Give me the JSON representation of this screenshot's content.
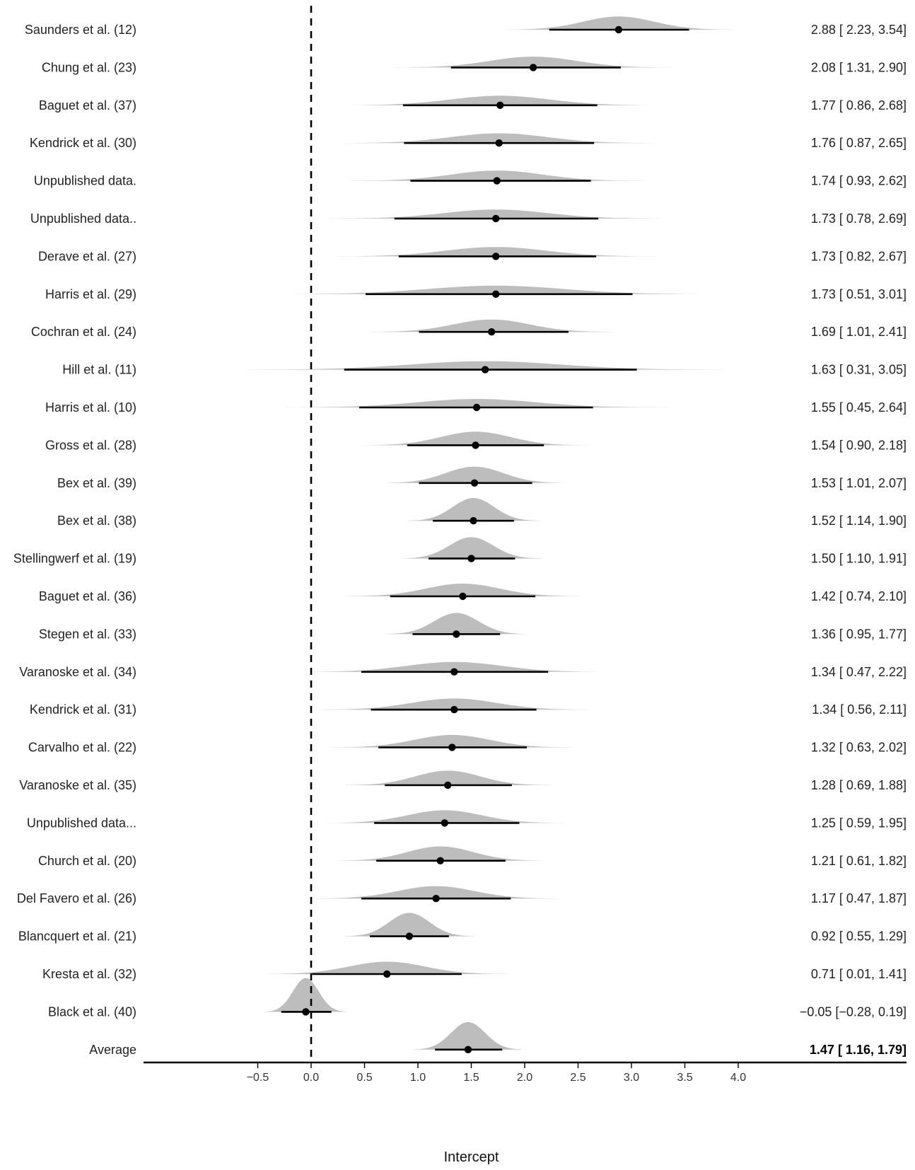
{
  "chart_data": {
    "type": "forest",
    "xlabel": "Intercept",
    "xlim": [
      -0.5,
      4.0
    ],
    "xticks": [
      -0.5,
      0.0,
      0.5,
      1.0,
      1.5,
      2.0,
      2.5,
      3.0,
      3.5,
      4.0
    ],
    "xtick_labels": [
      "−0.5",
      "0.0",
      "0.5",
      "1.0",
      "1.5",
      "2.0",
      "2.5",
      "3.0",
      "3.5",
      "4.0"
    ],
    "reference_line": 0.0,
    "grid": false,
    "density_color": "#bdbdbd",
    "point_color": "#000000",
    "studies": [
      {
        "name": "Saunders et al. (12)",
        "estimate": 2.88,
        "lower": 2.23,
        "upper": 3.54,
        "label": "2.88 [ 2.23, 3.54]"
      },
      {
        "name": "Chung et al. (23)",
        "estimate": 2.08,
        "lower": 1.31,
        "upper": 2.9,
        "label": "2.08 [ 1.31, 2.90]"
      },
      {
        "name": "Baguet et al. (37)",
        "estimate": 1.77,
        "lower": 0.86,
        "upper": 2.68,
        "label": "1.77 [ 0.86, 2.68]"
      },
      {
        "name": "Kendrick et al. (30)",
        "estimate": 1.76,
        "lower": 0.87,
        "upper": 2.65,
        "label": "1.76 [ 0.87, 2.65]"
      },
      {
        "name": "Unpublished data.",
        "estimate": 1.74,
        "lower": 0.93,
        "upper": 2.62,
        "label": "1.74 [ 0.93, 2.62]"
      },
      {
        "name": "Unpublished data..",
        "estimate": 1.73,
        "lower": 0.78,
        "upper": 2.69,
        "label": "1.73 [ 0.78, 2.69]"
      },
      {
        "name": "Derave et al. (27)",
        "estimate": 1.73,
        "lower": 0.82,
        "upper": 2.67,
        "label": "1.73 [ 0.82, 2.67]"
      },
      {
        "name": "Harris et al. (29)",
        "estimate": 1.73,
        "lower": 0.51,
        "upper": 3.01,
        "label": "1.73 [ 0.51, 3.01]"
      },
      {
        "name": "Cochran et al. (24)",
        "estimate": 1.69,
        "lower": 1.01,
        "upper": 2.41,
        "label": "1.69 [ 1.01, 2.41]"
      },
      {
        "name": "Hill et al. (11)",
        "estimate": 1.63,
        "lower": 0.31,
        "upper": 3.05,
        "label": "1.63 [ 0.31, 3.05]"
      },
      {
        "name": "Harris et al. (10)",
        "estimate": 1.55,
        "lower": 0.45,
        "upper": 2.64,
        "label": "1.55 [ 0.45, 2.64]"
      },
      {
        "name": "Gross et al. (28)",
        "estimate": 1.54,
        "lower": 0.9,
        "upper": 2.18,
        "label": "1.54 [ 0.90, 2.18]"
      },
      {
        "name": "Bex et al. (39)",
        "estimate": 1.53,
        "lower": 1.01,
        "upper": 2.07,
        "label": "1.53 [ 1.01, 2.07]"
      },
      {
        "name": "Bex et al. (38)",
        "estimate": 1.52,
        "lower": 1.14,
        "upper": 1.9,
        "label": "1.52 [ 1.14, 1.90]"
      },
      {
        "name": "Stellingwerf et al. (19)",
        "estimate": 1.5,
        "lower": 1.1,
        "upper": 1.91,
        "label": "1.50 [ 1.10, 1.91]"
      },
      {
        "name": "Baguet et al. (36)",
        "estimate": 1.42,
        "lower": 0.74,
        "upper": 2.1,
        "label": "1.42 [ 0.74, 2.10]"
      },
      {
        "name": "Stegen et al. (33)",
        "estimate": 1.36,
        "lower": 0.95,
        "upper": 1.77,
        "label": "1.36 [ 0.95, 1.77]"
      },
      {
        "name": "Varanoske et al. (34)",
        "estimate": 1.34,
        "lower": 0.47,
        "upper": 2.22,
        "label": "1.34 [ 0.47, 2.22]"
      },
      {
        "name": "Kendrick et al. (31)",
        "estimate": 1.34,
        "lower": 0.56,
        "upper": 2.11,
        "label": "1.34 [ 0.56, 2.11]"
      },
      {
        "name": "Carvalho et al. (22)",
        "estimate": 1.32,
        "lower": 0.63,
        "upper": 2.02,
        "label": "1.32 [ 0.63, 2.02]"
      },
      {
        "name": "Varanoske et al. (35)",
        "estimate": 1.28,
        "lower": 0.69,
        "upper": 1.88,
        "label": "1.28 [ 0.69, 1.88]"
      },
      {
        "name": "Unpublished data...",
        "estimate": 1.25,
        "lower": 0.59,
        "upper": 1.95,
        "label": "1.25 [ 0.59, 1.95]"
      },
      {
        "name": "Church et al. (20)",
        "estimate": 1.21,
        "lower": 0.61,
        "upper": 1.82,
        "label": "1.21 [ 0.61, 1.82]"
      },
      {
        "name": "Del Favero et al. (26)",
        "estimate": 1.17,
        "lower": 0.47,
        "upper": 1.87,
        "label": "1.17 [ 0.47, 1.87]"
      },
      {
        "name": "Blancquert et al. (21)",
        "estimate": 0.92,
        "lower": 0.55,
        "upper": 1.29,
        "label": "0.92 [ 0.55, 1.29]"
      },
      {
        "name": "Kresta et al. (32)",
        "estimate": 0.71,
        "lower": 0.01,
        "upper": 1.41,
        "label": "0.71 [ 0.01, 1.41]"
      },
      {
        "name": "Black et al. (40)",
        "estimate": -0.05,
        "lower": -0.28,
        "upper": 0.19,
        "label": "−0.05 [−0.28, 0.19]"
      },
      {
        "name": "Average",
        "estimate": 1.47,
        "lower": 1.16,
        "upper": 1.79,
        "label": "1.47 [ 1.16, 1.79]",
        "summary": true
      }
    ]
  }
}
